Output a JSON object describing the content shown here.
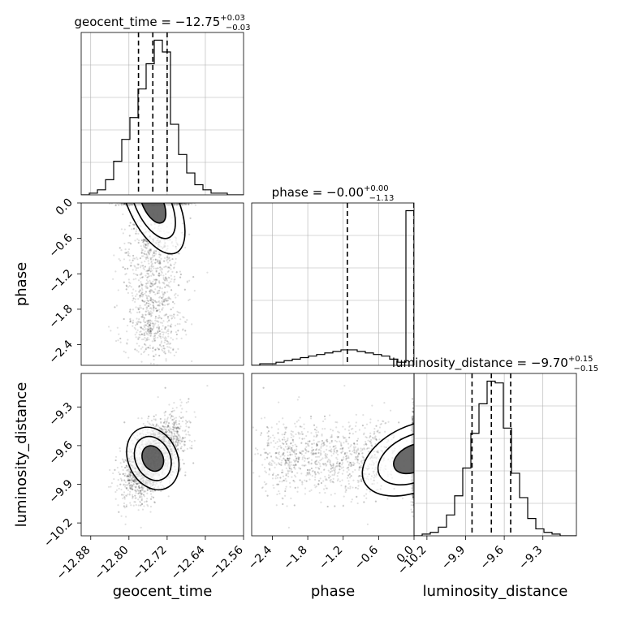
{
  "chart_data": {
    "type": "corner",
    "parameters": [
      "geocent_time",
      "phase",
      "luminosity_distance"
    ],
    "axis_labels": {
      "geocent_time": "geocent_time",
      "phase": "phase",
      "luminosity_distance": "luminosity_distance"
    },
    "ranges": {
      "geocent_time": [
        -12.9,
        -12.56
      ],
      "phase": [
        -2.75,
        0.0
      ],
      "luminosity_distance": [
        -10.3,
        -9.04
      ]
    },
    "ticks": {
      "geocent_time": [
        -12.88,
        -12.8,
        -12.72,
        -12.64,
        -12.56
      ],
      "phase": [
        -2.4,
        -1.8,
        -1.2,
        -0.6,
        0.0
      ],
      "luminosity_distance": [
        -10.2,
        -9.9,
        -9.6,
        -9.3
      ]
    },
    "tick_labels": {
      "geocent_time": [
        "−12.88",
        "−12.80",
        "−12.72",
        "−12.64",
        "−12.56"
      ],
      "phase": [
        "−2.4",
        "−1.8",
        "−1.2",
        "−0.6",
        "0.0"
      ],
      "luminosity_distance": [
        "−10.2",
        "−9.9",
        "−9.6",
        "−9.3"
      ]
    },
    "titles": {
      "geocent_time": {
        "text": "geocent_time = −12.75",
        "plus": "+0.03",
        "minus": "−0.03"
      },
      "phase": {
        "text": "phase = −0.00",
        "plus": "+0.00",
        "minus": "−1.13"
      },
      "luminosity_distance": {
        "text": "luminosity_distance = −9.70",
        "plus": "+0.15",
        "minus": "−0.15"
      }
    },
    "quantiles": {
      "geocent_time": [
        -12.78,
        -12.75,
        -12.72
      ],
      "phase": [
        -1.13,
        0.0,
        0.0
      ],
      "luminosity_distance": [
        -9.85,
        -9.7,
        -9.55
      ]
    },
    "histograms": {
      "geocent_time": {
        "edges": [
          -12.9,
          -12.883,
          -12.866,
          -12.849,
          -12.832,
          -12.815,
          -12.798,
          -12.781,
          -12.764,
          -12.747,
          -12.73,
          -12.713,
          -12.696,
          -12.679,
          -12.662,
          -12.645,
          -12.628,
          -12.611,
          -12.594,
          -12.577,
          -12.56
        ],
        "counts": [
          0,
          1,
          3,
          9,
          20,
          33,
          46,
          63,
          78,
          92,
          85,
          42,
          24,
          13,
          6,
          3,
          1,
          1,
          0,
          0
        ]
      },
      "phase": {
        "edges": [
          -2.75,
          -2.6125,
          -2.475,
          -2.3375,
          -2.2,
          -2.0625,
          -1.925,
          -1.7875,
          -1.65,
          -1.5125,
          -1.375,
          -1.2375,
          -1.1,
          -0.9625,
          -0.825,
          -0.6875,
          -0.55,
          -0.4125,
          -0.275,
          -0.1375,
          0.0
        ],
        "counts": [
          0,
          1,
          1,
          2,
          3,
          4,
          5,
          6,
          7,
          8,
          9,
          10,
          10,
          9,
          8,
          7,
          6,
          4,
          2,
          100
        ]
      },
      "luminosity_distance": {
        "edges": [
          -10.3,
          -10.237,
          -10.174,
          -10.111,
          -10.048,
          -9.985,
          -9.922,
          -9.859,
          -9.796,
          -9.733,
          -9.67,
          -9.607,
          -9.544,
          -9.481,
          -9.418,
          -9.355,
          -9.292,
          -9.229,
          -9.166,
          -9.103,
          -9.04
        ],
        "counts": [
          0,
          1,
          2,
          5,
          12,
          23,
          39,
          59,
          76,
          89,
          88,
          62,
          36,
          22,
          10,
          4,
          2,
          1,
          0,
          0
        ]
      }
    },
    "grid": true,
    "colors": {
      "points": "#000000",
      "contours": "#000000",
      "quantile_lines": "#000000",
      "grid": "#b0b0b0"
    }
  }
}
